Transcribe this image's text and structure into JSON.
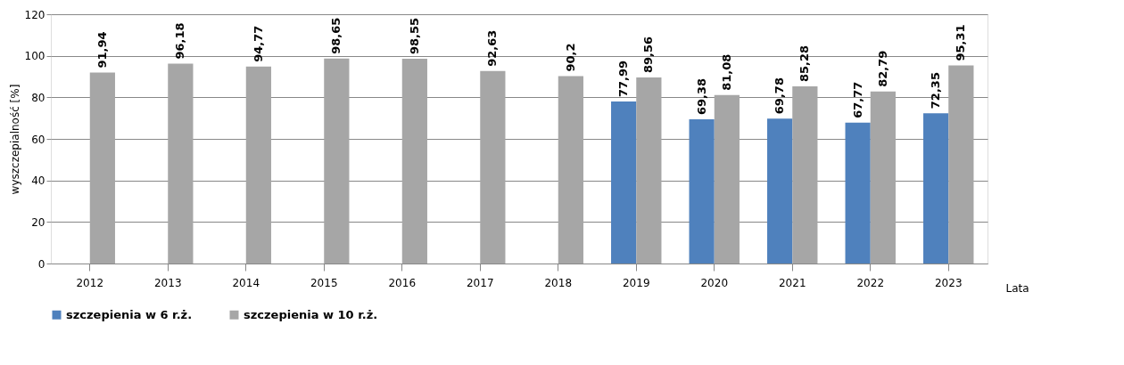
{
  "chart_data": {
    "type": "bar",
    "ylabel": "wyszczepialność [%]",
    "xlabel": "Lata",
    "categories": [
      "2012",
      "2013",
      "2014",
      "2015",
      "2016",
      "2017",
      "2018",
      "2019",
      "2020",
      "2021",
      "2022",
      "2023"
    ],
    "series": [
      {
        "name": "szczepienia w 6 r.ż.",
        "color": "#4f81bd",
        "values": [
          null,
          null,
          null,
          null,
          null,
          null,
          null,
          77.99,
          69.38,
          69.78,
          67.77,
          72.35
        ],
        "value_labels": [
          null,
          null,
          null,
          null,
          null,
          null,
          null,
          "77,99",
          "69,38",
          "69,78",
          "67,77",
          "72,35"
        ]
      },
      {
        "name": "szczepienia w 10 r.ż.",
        "color": "#a6a6a6",
        "values": [
          91.94,
          96.18,
          94.77,
          98.65,
          98.55,
          92.63,
          90.2,
          89.56,
          81.08,
          85.28,
          82.79,
          95.31
        ],
        "value_labels": [
          "91,94",
          "96,18",
          "94,77",
          "98,65",
          "98,55",
          "92,63",
          "90,2",
          "89,56",
          "81,08",
          "85,28",
          "82,79",
          "95,31"
        ]
      }
    ],
    "ylim": [
      0,
      120
    ],
    "yticks": [
      0,
      20,
      40,
      60,
      80,
      100,
      120
    ],
    "grid": "y",
    "legend": "bottom"
  }
}
